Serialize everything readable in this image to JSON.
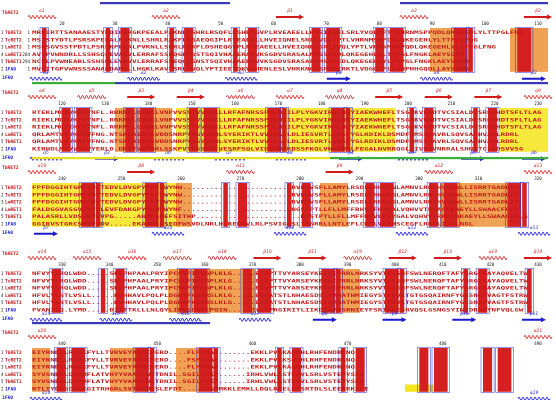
{
  "figure": {
    "reference_top": "TbRET2",
    "reference_bottom": "1FA0",
    "colors": {
      "label_red": "#d11a1a",
      "label_blue": "#1a1ad1",
      "conserved_red": "#d42020",
      "similar_text": "#c41818",
      "box_outline": "#2a2ad8",
      "yellow_domain": "#f5e51a",
      "orange_domain": "#ee8a28",
      "bar_blue": "#3a3ab8",
      "bar_green": "#3ab03a",
      "bar_yellow": "#e8e01e"
    }
  },
  "blocks": [
    {
      "ruler": [
        "20",
        "30",
        "40",
        "50",
        "60",
        "70",
        "80",
        "90",
        "100",
        "110"
      ],
      "ss_top": [
        "α1",
        "α2",
        "β1",
        "α3",
        "β2"
      ],
      "ss_bottom": [
        "α1",
        "α2",
        "α3",
        "β1",
        "α4",
        "β2"
      ],
      "rows": [
        {
          "id": "1",
          "name": "TbRET2",
          "num": "1",
          "seq": "MRRIRTTSANAAESTYDQIPSRGKPEEALPAKNLLSHRLRSQFLDSHEQGVPLRVEAEELLHVEIQNELSRLYVQLYPTLVHRNMSPPQDLQKEGEHLYLTTPGLFNG"
        },
        {
          "id": "2",
          "name": "TcRET2",
          "num": "1",
          "seq": "MSTSTYDTLPSRSKPEEALPAKNLLSHRLRAKFLDSAEQGIPLRVEAEELLHVEIQNELSRLYVQLYPTLVHRNMSPPQDLQKEGEHLYLTTPGLFNG"
        },
        {
          "id": "3",
          "name": "LmRET2",
          "num": "1",
          "seq": "MSRSGVSSTPDTLPSRSRPEEALPVKNLLSHRLRAKFLDSHEQGVPLRVEAEELLHVEIQNELSRLYVQLYPTLVHRNMSPPQDLQKEGEHLYLTTPGLFNG"
        },
        {
          "id": "4",
          "name": "LmRET1",
          "num": "284",
          "seq": "AVLPVWNDRLLSSHSQLEVAVVLERRAFSSDQGESNSTSQIVHAAERAVVKSGDVSRASALNMSSPEDLQKEGEHLYLTTPGLFNGKLAEYSQVR"
        },
        {
          "id": "5",
          "name": "TbRET1",
          "num": "294",
          "seq": "NCVLPVWNEARLSSHSQLEVAVVLERRAFSSEQGESNSTSQIVHAAERAVVKSGDVSRASALNMSSPEDLQKEGEHLYLTTPGLFNGKLAEYSQVR"
        },
        {
          "id": "2",
          "name": "1FA0",
          "num": "1",
          "seq": "MVGITGPVWNSSSANAPDANELLHGKLKAVLSRLYVQLYPTIEETQKVAHENLESLVHRKNGSSPQDIRKTLVDGQIPLLANPHHGQDLLAYSQVR"
        }
      ]
    },
    {
      "ruler": [
        "120",
        "130",
        "140",
        "150",
        "160",
        "170",
        "180",
        "190",
        "200",
        "210",
        "220",
        "230"
      ],
      "ss_top": [
        "α4",
        "α5",
        "β3",
        "β4",
        "α6",
        "α7",
        "α8",
        "β5",
        "β6",
        "β7",
        "α9"
      ],
      "ss_bottom": [
        "α5",
        "β3",
        "α6",
        "α7",
        "α8",
        "β4",
        "α9",
        "β5",
        "β6"
      ],
      "rows": [
        {
          "id": "1",
          "name": "TbRET2",
          "num": "",
          "seq": "RTEKLMGVVKEVYNFL.RRKNLLQIEKLVNPVVSSTVVHEKLLRFAFNRSSPQLNAILPLYGKVIRHLNEYIAEKWHEFLTSGSKVEGDTVCSIALDFSRDHHDTSFLTLAG"
        },
        {
          "id": "2",
          "name": "TcRET2",
          "num": "",
          "seq": "RIEKLMGVVKEVYNFL.RRKNLLQVEKLVNPVVSSTVVHEKLLRFAFNRSSPQLNAILPLYGKVIRHLNEYIAEKWHEFLTSGSKVEGDTVCSIALDFSRDHHDTSFLTLAG"
        },
        {
          "id": "3",
          "name": "LmRET2",
          "num": "",
          "seq": "RIEKLMGVIKEVYNFL.RRKNLLQVERLVNPVVSSTVVHEKLLRFAFNRSSPQLNAILPLYGKVIRHLNEYIAEKWHEFLTSGSKVEGDTVCSIALDFSRDHHDTSFLTLAG"
        },
        {
          "id": "4",
          "name": "LmRET1",
          "num": "",
          "seq": "QRLAMTVVVKRRVFNG.NTSALAIAYSVDDSNRPYNGYVDMLSYERIKTLVVCSAVLDLIESVRTLLKSFYGLRDIKLDSMDFRMSSSAVRLSQVSAEHVAVLRDRL"
        },
        {
          "id": "5",
          "name": "TbRET1",
          "num": "",
          "seq": "QRLAMTVVVKRRVFNG.NTSALAIAYSVDDSNRPYNGYVDMLSYERIKTLVVCSAVLDLIESVRTLLKSFYGLRDIKLDSMDFRMSSSAVRLSQVSAEHVAVLRDRL"
        },
        {
          "id": "2",
          "name": "1FA0",
          "num": "",
          "seq": "KIRHDLMVVVSKVYERLD.DRLTVATQKLGSKPVTRSSMDIVESRFSQLVIEQAHDKDSSFKQLVNGDMQLFEGALNVRRQGLIIVRIVNRRALSHNFTCLQDSVVSG"
        }
      ]
    },
    {
      "ruler": [
        "240",
        "250",
        "260",
        "270",
        "280",
        "290",
        "300",
        "310",
        "320"
      ],
      "ss_top": [
        "α10",
        "β8",
        "α11",
        "β9",
        "α12",
        "α13"
      ],
      "ss_bottom": [
        "β7",
        "α10",
        "α11",
        "α12",
        "α13"
      ],
      "rows": [
        {
          "id": "1",
          "name": "TbRET2",
          "num": "",
          "seq": "FPFDGGIHTGMEEDYTEDVLDVGPYPEFIWYNW........................RVRGVSFLLAMYLRSDLLRHVAGLAMNVLRNLHVVRWLLISRRTGADLAS"
        },
        {
          "id": "2",
          "name": "TcRET2",
          "num": "",
          "seq": "FPFDGGIHTGMEEDYTEDVLDVGPYPEFIWYNW........................RVRGVSFLLAMYLRSDLLRHVAGLAMNVLRNLHVVRWLLISRRTGADLAS"
        },
        {
          "id": "3",
          "name": "LmRET2",
          "num": "",
          "seq": "FPFDGGIHTGMEEDYTEDVLDVGPYPEFIWYNW........................RVRGVSFLLAMYLRSDLLRHVAGLAMNVLRNLHVVRWLLISRRTGADLAS"
        },
        {
          "id": "4",
          "name": "LmRET1",
          "num": "",
          "seq": "FALDGGVASGVEVVPLEVFDAKGPYMEWLWYNF........................NGSTPTLLFLLMFFRHVLFHYGALVQHVVTRRASAKAEYLLSWAACFFLS"
        },
        {
          "id": "5",
          "name": "TbRET1",
          "num": "",
          "seq": "PALASRLLVDSSEVEVPG.....ANDCAREFSITHP.......................KGSTPTLLFLLMFFRHVLFHYGALVQHVVTRRASAKAEYLLSWAACFFLS"
        },
        {
          "id": "2",
          "name": "1FA0",
          "num": "",
          "seq": "GGIRVSTGRCSMIPVDV.....EKAYNLLSEDFWSVDLNRLHLREDQVLRLPSVIGHSLTSNRRLLNTLEFLCNDLVLTHSCEGFLRRDLIGGLNGL"
        }
      ]
    },
    {
      "ruler": [
        "330",
        "340",
        "350",
        "360",
        "370",
        "380",
        "390",
        "400",
        "410",
        "420",
        "430"
      ],
      "ss_top": [
        "α14",
        "α15",
        "α16",
        "α17",
        "α18",
        "β10",
        "β11",
        "α19",
        "β12",
        "β13",
        "α19",
        "β14"
      ],
      "ss_bottom": [
        "α14",
        "α15",
        "α16",
        "α17",
        "β8",
        "β9",
        "β10",
        "β11"
      ],
      "rows": [
        {
          "id": "1",
          "name": "TbRET2",
          "num": "",
          "seq": "NFVYYLRQLWDD.....SELPHPAALPRYIPCSVPIFCGPLKLG.....EIVPTTVYARSEYKEEHIVRRLNRKSYVTGIGNFSWLNERQFTAFYGRGGSAYAQVELTW"
        },
        {
          "id": "2",
          "name": "TcRET2",
          "num": "",
          "seq": "NFVYYLRQLWDD.....SELPHPAALPRYIPCSVPIFCGPLKLG.....EIVPTTVYARSEYKEEHIVRRLNRKSYVTGIGNFSWLNERQFTAFYGRGGSAYAQVELTW"
        },
        {
          "id": "3",
          "name": "LmRET2",
          "num": "",
          "seq": "NFVYYLRQLWDD.....SELPHPAALPRYIPCSVPIFCGPLKLG.....EIVPTTVYARSEYKEEHIVRRLNRKSYVTGIGNFSWLNERQFTAFYGRGGSAYAQVELTW"
        },
        {
          "id": "4",
          "name": "LmRET1",
          "num": "",
          "seq": "HFVLYLNTLVSLL.....RVHHAVLPQLPLDGEAPKASRSLKLG.....EVVATSTLNHAESDSLAMNATHMIEGYSTAGVLTGTGSQAIRNFYGSSNEFVAGTFSTRW"
        },
        {
          "id": "5",
          "name": "TbRET1",
          "num": "",
          "seq": "HFVLYLNTLVSLL.....RVHHAVLPQLPLDGEAPKASRSLKLG.....EVVATSTLNHAESDSLAMNATHMIEGYSTAGVLTGTGSQAIRNFYGSSNEFVAGTFSTRW"
        },
        {
          "id": "2",
          "name": "1FA0",
          "num": "",
          "seq": "FVANICQ.LYMD.....DISTTKLLLNLQYLIPRSDGTIPQIN.....DYSTPRGIRITLIIKDIGPNSRNIEYFSRIANESRVQSLGSNGSYINIDRGKYNFVQLGW"
        }
      ]
    },
    {
      "ruler": [
        "440",
        "450",
        "460",
        "470",
        "480",
        "490"
      ],
      "ss_top": [
        "α20",
        "α21"
      ],
      "ss_bottom": [
        "α18",
        "α19"
      ],
      "rows": [
        {
          "id": "1",
          "name": "TbRET2",
          "num": "",
          "seq": "EIYRNDLLRHAKFYLLTVRVEYAAKCMERD....FLPTMAP.......EKKLPVLKAQQHLRHFENDRRNQ"
        },
        {
          "id": "2",
          "name": "TcRET2",
          "num": "",
          "seq": "EIYRNDLLRHAKFYLLTVRVEYAAKCMERD....FSPLTAP.......EKKLPVLKSQQHLRHFENDRRNQ"
        },
        {
          "id": "3",
          "name": "LmRET2",
          "num": "",
          "seq": "EIYRNDLLRHAKFYLLTVRVEYAAKCMERD....FLPTMAP.......EKKLPVLKAQQHLRHFENDRRNQ"
        },
        {
          "id": "4",
          "name": "LmRET1",
          "num": "",
          "seq": "SYVSNEALQTAMFLATVHYYVAAKCNSTDNIL.SGILPVKP......IRHLVWLASTKQVLSRLVSTEMYSKA"
        },
        {
          "id": "5",
          "name": "TbRET1",
          "num": "",
          "seq": "SYVSNEALQTAMFLATVHYYVAAKCNSTDNIL.SGILPVKP......IRHLVWLASTKQVLSRLVSTEMYSKA"
        },
        {
          "id": "2",
          "name": "1FA0",
          "num": "",
          "seq": "RTLTYDSSCVEKGITRHGRLSVTMKMLSLEFDT....IFSNMKKLEMKLLDQLRHELRSSRTDLSLEEARKFLE"
        }
      ]
    }
  ]
}
